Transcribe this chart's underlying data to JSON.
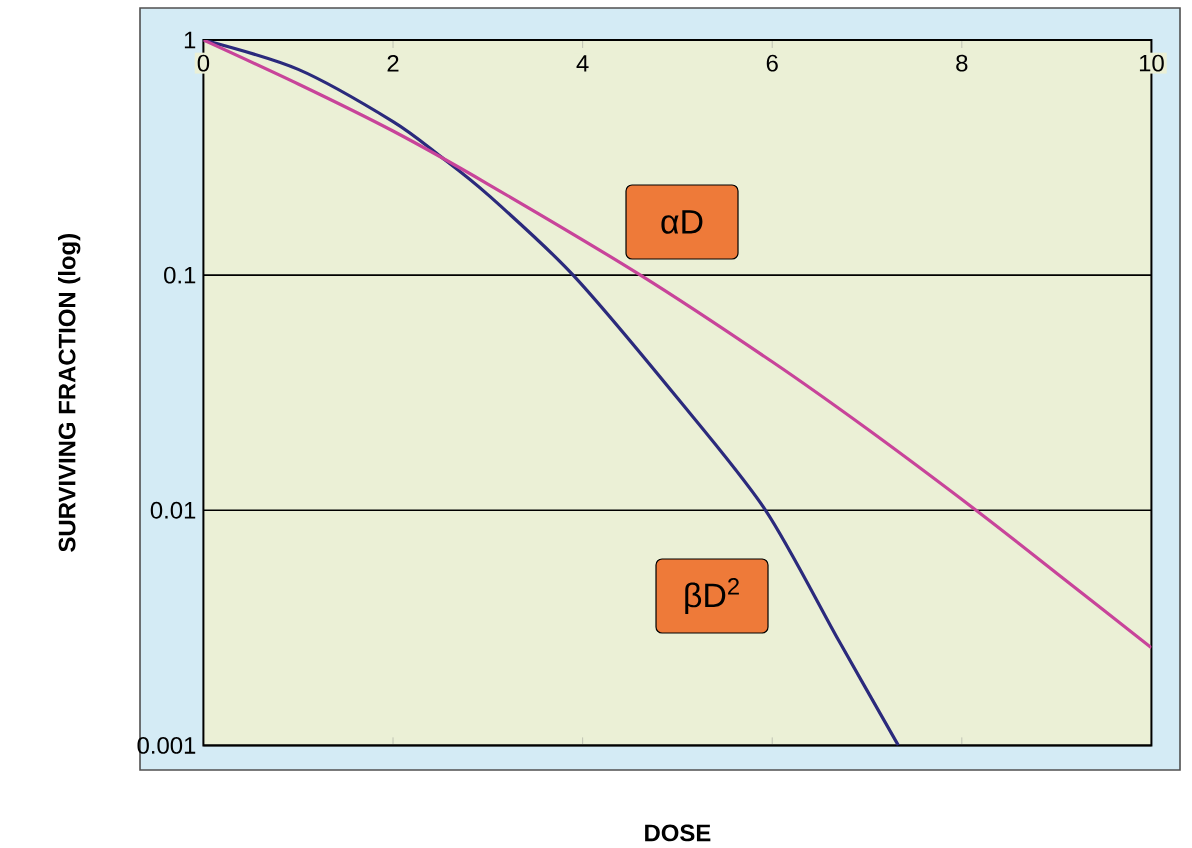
{
  "chart_data": {
    "type": "line",
    "xlabel": "DOSE",
    "ylabel": "SURVIVING FRACTION (log)",
    "xlim": [
      0,
      10
    ],
    "xticks": [
      0,
      2,
      4,
      6,
      8,
      10
    ],
    "ylim": [
      0.001,
      1
    ],
    "yticks": [
      0.001,
      0.01,
      0.1,
      1
    ],
    "log": "y",
    "grid": "y",
    "marker": "none",
    "line_style": "solid",
    "series": [
      {
        "color": "#2b2a7c",
        "x": [
          0,
          1,
          2,
          2.5,
          3,
          3.9,
          5,
          5.93,
          6.7,
          7.33
        ],
        "values": [
          1,
          0.75,
          0.45,
          0.32,
          0.22,
          0.1,
          0.03,
          0.01,
          0.0028,
          0.001
        ]
      },
      {
        "color": "#c8449a",
        "x": [
          0,
          1,
          2,
          3,
          4.61,
          6,
          7,
          8.15,
          9,
          10
        ],
        "values": [
          1,
          0.65,
          0.41,
          0.244,
          0.1,
          0.0428,
          0.0222,
          0.01,
          0.0054,
          0.0026
        ]
      }
    ],
    "annotations": [
      "αD",
      "βD$^{2}$"
    ]
  }
}
